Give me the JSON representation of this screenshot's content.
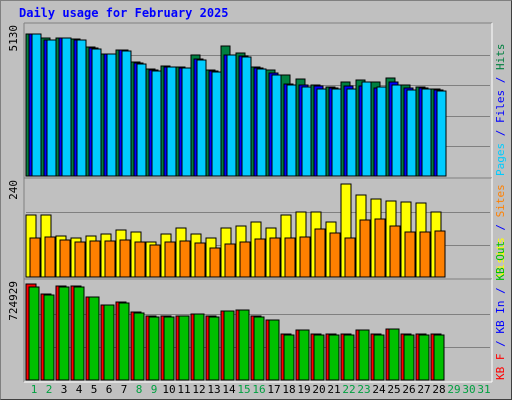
{
  "chart_data": [
    {
      "type": "bar",
      "title": "Daily usage for February 2025",
      "y_tick_label": "5130",
      "ylim": [
        0,
        5450
      ],
      "legend_parts": [
        {
          "text": "Pages",
          "color": "#00ccff"
        },
        {
          "text": " / ",
          "color": "#0000ff"
        },
        {
          "text": "Files",
          "color": "#0000ff"
        },
        {
          "text": " / ",
          "color": "#0000ff"
        },
        {
          "text": "Hits",
          "color": "#008040"
        }
      ],
      "categories": [
        "1",
        "2",
        "3",
        "4",
        "5",
        "6",
        "7",
        "8",
        "9",
        "10",
        "11",
        "12",
        "13",
        "14",
        "15",
        "16",
        "17",
        "18",
        "19",
        "20",
        "21",
        "22",
        "23",
        "24",
        "25",
        "26",
        "27",
        "28",
        "29",
        "30",
        "31"
      ],
      "weekend_days": [
        1,
        2,
        8,
        9,
        15,
        16,
        22,
        23
      ],
      "series": [
        {
          "name": "Hits",
          "color": "#008040",
          "values": [
            5130,
            4990,
            4990,
            4950,
            4640,
            4420,
            4550,
            4110,
            3860,
            3980,
            3940,
            4370,
            3810,
            4680,
            4430,
            3940,
            3840,
            3630,
            3490,
            3280,
            3220,
            3400,
            3450,
            3400,
            3550,
            3300,
            3200,
            3150,
            0,
            0,
            0
          ]
        },
        {
          "name": "Files",
          "color": "#0000ff",
          "values": [
            5110,
            4910,
            4970,
            4920,
            4610,
            4400,
            4530,
            4070,
            3810,
            3950,
            3900,
            4230,
            3780,
            4350,
            4340,
            3880,
            3700,
            3330,
            3300,
            3250,
            3180,
            3250,
            3250,
            3180,
            3380,
            3160,
            3180,
            3120,
            0,
            0,
            0
          ]
        },
        {
          "name": "Pages",
          "color": "#00ccff",
          "values": [
            5110,
            4900,
            4970,
            4910,
            4590,
            4390,
            4520,
            4050,
            3790,
            3930,
            3880,
            4170,
            3760,
            4360,
            4300,
            3850,
            3660,
            3270,
            3230,
            3150,
            3140,
            3130,
            3400,
            3220,
            3290,
            3100,
            3150,
            3080,
            0,
            0,
            0
          ]
        }
      ]
    },
    {
      "type": "bar",
      "y_tick_label": "240",
      "ylim": [
        0,
        249
      ],
      "legend_parts": [
        {
          "text": "Visits",
          "color": "#ffff00"
        },
        {
          "text": " / ",
          "color": "#0000ff"
        },
        {
          "text": "Sites",
          "color": "#ff8000"
        }
      ],
      "series": [
        {
          "name": "Visits",
          "color": "#ffff00",
          "values": [
            160,
            160,
            105,
            100,
            105,
            110,
            120,
            115,
            90,
            110,
            125,
            110,
            100,
            125,
            130,
            140,
            127,
            160,
            166,
            166,
            140,
            240,
            210,
            200,
            195,
            192,
            190,
            167,
            0,
            0,
            0
          ]
        },
        {
          "name": "Sites",
          "color": "#ff8000",
          "values": [
            100,
            102,
            95,
            90,
            92,
            93,
            95,
            90,
            82,
            90,
            93,
            87,
            75,
            85,
            90,
            97,
            100,
            100,
            103,
            123,
            112,
            100,
            146,
            150,
            131,
            115,
            115,
            117,
            0,
            0,
            0
          ]
        }
      ]
    },
    {
      "type": "bar",
      "y_tick_label": "724929",
      "ylim": [
        0,
        750000
      ],
      "legend_parts": [
        {
          "text": "KB F",
          "color": "#ff0000"
        },
        {
          "text": " / ",
          "color": "#0000ff"
        },
        {
          "text": "KB In",
          "color": "#0000ff"
        },
        {
          "text": " / ",
          "color": "#0000ff"
        },
        {
          "text": "KB Out",
          "color": "#00c000"
        }
      ],
      "series": [
        {
          "name": "KB F",
          "color": "#ff0000",
          "values": [
            724929,
            651000,
            709000,
            709000,
            629000,
            570000,
            590000,
            513000,
            483000,
            483000,
            483000,
            503000,
            483000,
            523000,
            532000,
            483000,
            454000,
            345000,
            378000,
            345000,
            345000,
            345000,
            378000,
            345000,
            389000,
            345000,
            345000,
            345000,
            0,
            0,
            0
          ]
        },
        {
          "name": "KB Out",
          "color": "#00c000",
          "values": [
            705000,
            645000,
            705000,
            705000,
            625000,
            567000,
            585000,
            509000,
            480000,
            480000,
            488000,
            500000,
            480000,
            521000,
            530000,
            480000,
            451000,
            340000,
            375000,
            340000,
            340000,
            340000,
            375000,
            340000,
            385000,
            340000,
            340000,
            340000,
            0,
            0,
            0
          ]
        }
      ]
    }
  ]
}
